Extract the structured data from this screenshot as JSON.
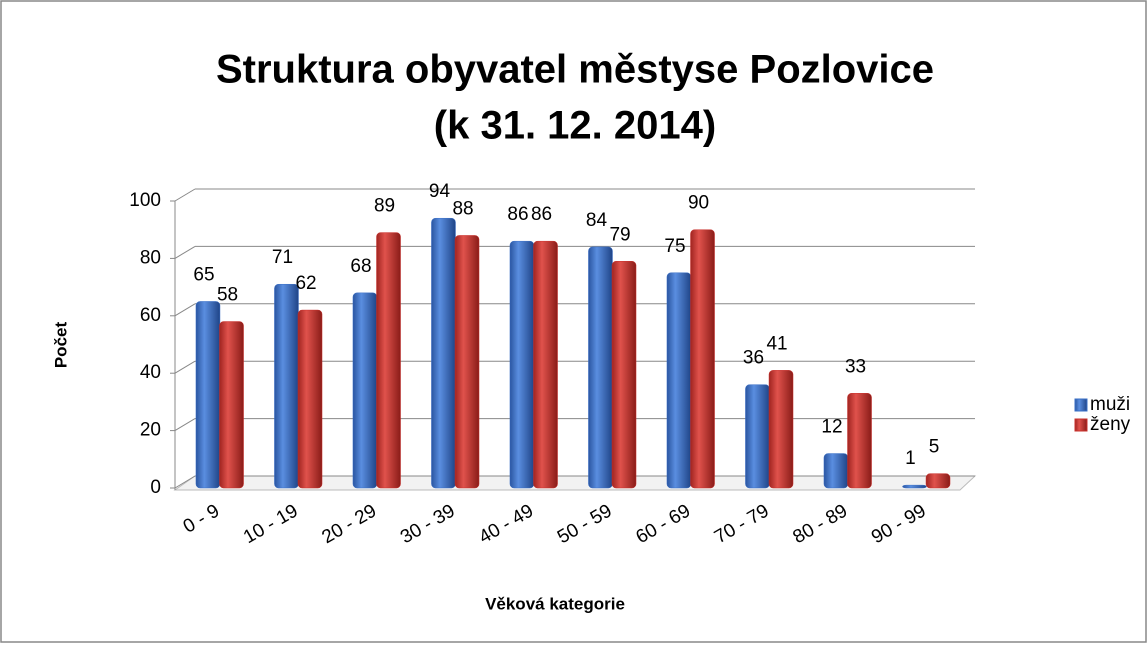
{
  "chart_data": {
    "type": "bar",
    "title": [
      "Struktura obyvatel městyse Pozlovice",
      "(k 31. 12. 2014)"
    ],
    "x_label": "Věková kategorie",
    "y_label": "Počet",
    "categories": [
      "0 - 9",
      "10 - 19",
      "20 - 29",
      "30 - 39",
      "40 - 49",
      "50 - 59",
      "60 - 69",
      "70 - 79",
      "80 - 89",
      "90 - 99"
    ],
    "series": [
      {
        "name": "muži",
        "color": "#3a6fc6",
        "values": [
          65,
          71,
          68,
          94,
          86,
          84,
          75,
          36,
          12,
          1
        ]
      },
      {
        "name": "ženy",
        "color": "#c9302c",
        "values": [
          58,
          62,
          89,
          88,
          86,
          79,
          90,
          41,
          33,
          5
        ]
      }
    ],
    "ylim": [
      0,
      100
    ],
    "yticks": [
      0,
      20,
      40,
      60,
      80,
      100
    ],
    "grid": true,
    "legend": "right"
  }
}
